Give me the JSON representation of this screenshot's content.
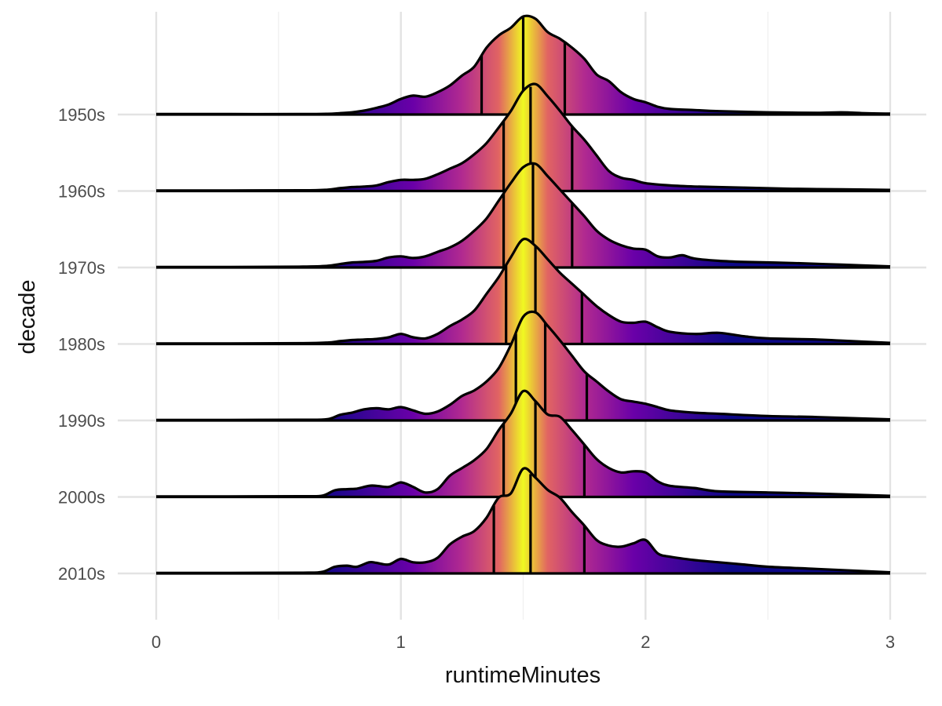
{
  "chart_data": {
    "type": "ridgeline",
    "xlabel": "runtimeMinutes",
    "ylabel": "decade",
    "xlim": [
      0,
      3
    ],
    "x_ticks": [
      "0",
      "1",
      "2",
      "3"
    ],
    "x_tick_values": [
      0,
      1,
      2,
      3
    ],
    "x_minor_tick_values": [
      0.5,
      1.5,
      2.5
    ],
    "fill": "gradient",
    "fill_palette": "plasma",
    "palette_stops": [
      "#0d0887",
      "#6a00a8",
      "#b12a90",
      "#e16462",
      "#fca636",
      "#f0f921"
    ],
    "quantile_lines": [
      "25%",
      "50%",
      "75%"
    ],
    "grid": true,
    "legend": "none",
    "series": [
      {
        "name": "1950s",
        "quantiles": [
          1.33,
          1.5,
          1.67
        ],
        "points": [
          [
            0,
            0.004
          ],
          [
            0.3,
            0.004
          ],
          [
            0.6,
            0.004
          ],
          [
            0.7,
            0.006
          ],
          [
            0.75,
            0.012
          ],
          [
            0.8,
            0.02
          ],
          [
            0.85,
            0.035
          ],
          [
            0.9,
            0.06
          ],
          [
            0.95,
            0.09
          ],
          [
            1.0,
            0.14
          ],
          [
            1.05,
            0.17
          ],
          [
            1.1,
            0.16
          ],
          [
            1.15,
            0.2
          ],
          [
            1.2,
            0.26
          ],
          [
            1.25,
            0.35
          ],
          [
            1.3,
            0.43
          ],
          [
            1.35,
            0.6
          ],
          [
            1.4,
            0.71
          ],
          [
            1.45,
            0.78
          ],
          [
            1.5,
            0.88
          ],
          [
            1.55,
            0.86
          ],
          [
            1.6,
            0.74
          ],
          [
            1.65,
            0.68
          ],
          [
            1.7,
            0.6
          ],
          [
            1.75,
            0.5
          ],
          [
            1.8,
            0.36
          ],
          [
            1.85,
            0.3
          ],
          [
            1.9,
            0.2
          ],
          [
            1.95,
            0.14
          ],
          [
            2.0,
            0.11
          ],
          [
            2.05,
            0.07
          ],
          [
            2.1,
            0.05
          ],
          [
            2.2,
            0.04
          ],
          [
            2.3,
            0.03
          ],
          [
            2.5,
            0.02
          ],
          [
            2.7,
            0.015
          ],
          [
            2.8,
            0.02
          ],
          [
            2.9,
            0.012
          ],
          [
            3.0,
            0.008
          ]
        ]
      },
      {
        "name": "1960s",
        "quantiles": [
          1.42,
          1.53,
          1.7
        ],
        "points": [
          [
            0,
            0.004
          ],
          [
            0.3,
            0.005
          ],
          [
            0.6,
            0.006
          ],
          [
            0.7,
            0.012
          ],
          [
            0.75,
            0.025
          ],
          [
            0.8,
            0.035
          ],
          [
            0.85,
            0.04
          ],
          [
            0.9,
            0.05
          ],
          [
            0.95,
            0.08
          ],
          [
            1.0,
            0.1
          ],
          [
            1.05,
            0.1
          ],
          [
            1.1,
            0.11
          ],
          [
            1.15,
            0.15
          ],
          [
            1.2,
            0.2
          ],
          [
            1.25,
            0.25
          ],
          [
            1.3,
            0.33
          ],
          [
            1.35,
            0.43
          ],
          [
            1.4,
            0.57
          ],
          [
            1.45,
            0.72
          ],
          [
            1.5,
            0.9
          ],
          [
            1.55,
            0.96
          ],
          [
            1.6,
            0.85
          ],
          [
            1.65,
            0.72
          ],
          [
            1.7,
            0.58
          ],
          [
            1.75,
            0.46
          ],
          [
            1.8,
            0.32
          ],
          [
            1.85,
            0.18
          ],
          [
            1.9,
            0.12
          ],
          [
            1.95,
            0.1
          ],
          [
            2.0,
            0.07
          ],
          [
            2.1,
            0.05
          ],
          [
            2.2,
            0.04
          ],
          [
            2.4,
            0.03
          ],
          [
            2.6,
            0.02
          ],
          [
            2.8,
            0.015
          ],
          [
            3.0,
            0.01
          ]
        ]
      },
      {
        "name": "1970s",
        "quantiles": [
          1.42,
          1.54,
          1.7
        ],
        "points": [
          [
            0,
            0.004
          ],
          [
            0.3,
            0.005
          ],
          [
            0.6,
            0.008
          ],
          [
            0.7,
            0.015
          ],
          [
            0.75,
            0.03
          ],
          [
            0.8,
            0.045
          ],
          [
            0.85,
            0.05
          ],
          [
            0.9,
            0.06
          ],
          [
            0.95,
            0.09
          ],
          [
            1.0,
            0.1
          ],
          [
            1.05,
            0.085
          ],
          [
            1.1,
            0.1
          ],
          [
            1.15,
            0.14
          ],
          [
            1.2,
            0.18
          ],
          [
            1.25,
            0.24
          ],
          [
            1.3,
            0.33
          ],
          [
            1.35,
            0.44
          ],
          [
            1.4,
            0.6
          ],
          [
            1.45,
            0.76
          ],
          [
            1.5,
            0.9
          ],
          [
            1.55,
            0.93
          ],
          [
            1.6,
            0.82
          ],
          [
            1.65,
            0.7
          ],
          [
            1.7,
            0.58
          ],
          [
            1.75,
            0.46
          ],
          [
            1.8,
            0.33
          ],
          [
            1.85,
            0.25
          ],
          [
            1.9,
            0.2
          ],
          [
            1.95,
            0.17
          ],
          [
            2.0,
            0.16
          ],
          [
            2.05,
            0.1
          ],
          [
            2.1,
            0.09
          ],
          [
            2.15,
            0.11
          ],
          [
            2.2,
            0.08
          ],
          [
            2.3,
            0.06
          ],
          [
            2.4,
            0.05
          ],
          [
            2.6,
            0.04
          ],
          [
            2.8,
            0.025
          ],
          [
            3.0,
            0.01
          ]
        ]
      },
      {
        "name": "1980s",
        "quantiles": [
          1.43,
          1.55,
          1.74
        ],
        "points": [
          [
            0,
            0.004
          ],
          [
            0.3,
            0.005
          ],
          [
            0.6,
            0.007
          ],
          [
            0.7,
            0.013
          ],
          [
            0.75,
            0.025
          ],
          [
            0.8,
            0.035
          ],
          [
            0.85,
            0.04
          ],
          [
            0.9,
            0.045
          ],
          [
            0.95,
            0.06
          ],
          [
            1.0,
            0.09
          ],
          [
            1.05,
            0.06
          ],
          [
            1.1,
            0.05
          ],
          [
            1.15,
            0.09
          ],
          [
            1.2,
            0.16
          ],
          [
            1.25,
            0.22
          ],
          [
            1.3,
            0.3
          ],
          [
            1.35,
            0.45
          ],
          [
            1.4,
            0.6
          ],
          [
            1.45,
            0.78
          ],
          [
            1.5,
            0.94
          ],
          [
            1.55,
            0.88
          ],
          [
            1.6,
            0.76
          ],
          [
            1.65,
            0.64
          ],
          [
            1.7,
            0.54
          ],
          [
            1.75,
            0.44
          ],
          [
            1.8,
            0.34
          ],
          [
            1.85,
            0.26
          ],
          [
            1.9,
            0.2
          ],
          [
            1.95,
            0.19
          ],
          [
            2.0,
            0.2
          ],
          [
            2.05,
            0.15
          ],
          [
            2.1,
            0.11
          ],
          [
            2.2,
            0.09
          ],
          [
            2.3,
            0.1
          ],
          [
            2.4,
            0.07
          ],
          [
            2.5,
            0.05
          ],
          [
            2.7,
            0.04
          ],
          [
            2.8,
            0.03
          ],
          [
            3.0,
            0.01
          ]
        ]
      },
      {
        "name": "1990s",
        "quantiles": [
          1.47,
          1.59,
          1.76
        ],
        "points": [
          [
            0,
            0.004
          ],
          [
            0.3,
            0.005
          ],
          [
            0.6,
            0.006
          ],
          [
            0.7,
            0.012
          ],
          [
            0.75,
            0.05
          ],
          [
            0.8,
            0.07
          ],
          [
            0.85,
            0.1
          ],
          [
            0.9,
            0.11
          ],
          [
            0.95,
            0.1
          ],
          [
            1.0,
            0.12
          ],
          [
            1.05,
            0.09
          ],
          [
            1.1,
            0.06
          ],
          [
            1.15,
            0.08
          ],
          [
            1.2,
            0.14
          ],
          [
            1.25,
            0.22
          ],
          [
            1.3,
            0.27
          ],
          [
            1.35,
            0.35
          ],
          [
            1.4,
            0.47
          ],
          [
            1.45,
            0.68
          ],
          [
            1.5,
            0.93
          ],
          [
            1.55,
            0.97
          ],
          [
            1.6,
            0.85
          ],
          [
            1.65,
            0.72
          ],
          [
            1.7,
            0.58
          ],
          [
            1.75,
            0.44
          ],
          [
            1.8,
            0.35
          ],
          [
            1.85,
            0.26
          ],
          [
            1.9,
            0.19
          ],
          [
            1.95,
            0.17
          ],
          [
            2.0,
            0.15
          ],
          [
            2.05,
            0.12
          ],
          [
            2.1,
            0.09
          ],
          [
            2.2,
            0.07
          ],
          [
            2.3,
            0.06
          ],
          [
            2.5,
            0.04
          ],
          [
            2.7,
            0.03
          ],
          [
            3.0,
            0.01
          ]
        ]
      },
      {
        "name": "2000s",
        "quantiles": [
          1.42,
          1.55,
          1.75
        ],
        "points": [
          [
            0,
            0.004
          ],
          [
            0.3,
            0.005
          ],
          [
            0.6,
            0.006
          ],
          [
            0.68,
            0.012
          ],
          [
            0.73,
            0.06
          ],
          [
            0.78,
            0.07
          ],
          [
            0.82,
            0.075
          ],
          [
            0.87,
            0.1
          ],
          [
            0.9,
            0.1
          ],
          [
            0.95,
            0.09
          ],
          [
            1.0,
            0.13
          ],
          [
            1.05,
            0.09
          ],
          [
            1.1,
            0.04
          ],
          [
            1.15,
            0.07
          ],
          [
            1.2,
            0.19
          ],
          [
            1.25,
            0.26
          ],
          [
            1.3,
            0.33
          ],
          [
            1.35,
            0.43
          ],
          [
            1.4,
            0.6
          ],
          [
            1.45,
            0.75
          ],
          [
            1.5,
            0.95
          ],
          [
            1.55,
            0.86
          ],
          [
            1.6,
            0.74
          ],
          [
            1.65,
            0.72
          ],
          [
            1.7,
            0.6
          ],
          [
            1.75,
            0.47
          ],
          [
            1.8,
            0.34
          ],
          [
            1.85,
            0.26
          ],
          [
            1.9,
            0.22
          ],
          [
            1.95,
            0.23
          ],
          [
            2.0,
            0.22
          ],
          [
            2.05,
            0.14
          ],
          [
            2.1,
            0.1
          ],
          [
            2.2,
            0.08
          ],
          [
            2.3,
            0.05
          ],
          [
            2.5,
            0.04
          ],
          [
            2.7,
            0.03
          ],
          [
            3.0,
            0.01
          ]
        ]
      },
      {
        "name": "2010s",
        "quantiles": [
          1.38,
          1.53,
          1.75
        ],
        "points": [
          [
            0,
            0.004
          ],
          [
            0.3,
            0.005
          ],
          [
            0.6,
            0.006
          ],
          [
            0.68,
            0.015
          ],
          [
            0.73,
            0.06
          ],
          [
            0.78,
            0.07
          ],
          [
            0.82,
            0.06
          ],
          [
            0.87,
            0.1
          ],
          [
            0.9,
            0.095
          ],
          [
            0.95,
            0.08
          ],
          [
            1.0,
            0.13
          ],
          [
            1.05,
            0.1
          ],
          [
            1.1,
            0.1
          ],
          [
            1.15,
            0.14
          ],
          [
            1.2,
            0.26
          ],
          [
            1.25,
            0.33
          ],
          [
            1.3,
            0.38
          ],
          [
            1.35,
            0.5
          ],
          [
            1.4,
            0.68
          ],
          [
            1.45,
            0.72
          ],
          [
            1.5,
            0.94
          ],
          [
            1.55,
            0.86
          ],
          [
            1.6,
            0.75
          ],
          [
            1.65,
            0.68
          ],
          [
            1.7,
            0.55
          ],
          [
            1.75,
            0.43
          ],
          [
            1.8,
            0.3
          ],
          [
            1.85,
            0.25
          ],
          [
            1.9,
            0.24
          ],
          [
            1.95,
            0.27
          ],
          [
            2.0,
            0.3
          ],
          [
            2.05,
            0.18
          ],
          [
            2.1,
            0.15
          ],
          [
            2.2,
            0.12
          ],
          [
            2.3,
            0.1
          ],
          [
            2.4,
            0.08
          ],
          [
            2.5,
            0.06
          ],
          [
            2.7,
            0.04
          ],
          [
            3.0,
            0.01
          ]
        ]
      }
    ]
  }
}
